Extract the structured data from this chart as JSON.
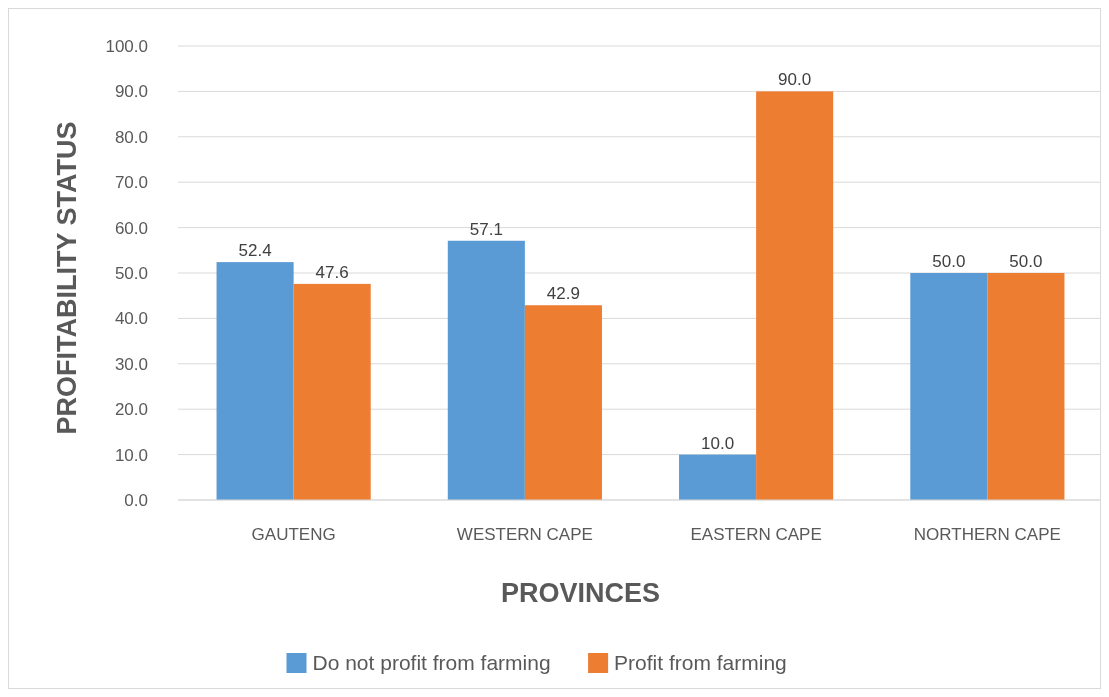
{
  "chart_data": {
    "type": "bar",
    "xlabel": "PROVINCES",
    "ylabel": "PROFITABILITY STATUS",
    "categories": [
      "GAUTENG",
      "WESTERN CAPE",
      "EASTERN CAPE",
      "NORTHERN CAPE"
    ],
    "series": [
      {
        "name": "Do not profit from farming",
        "color": "#5b9bd5",
        "values": [
          52.4,
          57.1,
          10.0,
          50.0
        ],
        "value_labels": [
          "52.4",
          "57.1",
          "10.0",
          "50.0"
        ]
      },
      {
        "name": "Profit from farming",
        "color": "#ed7d31",
        "values": [
          47.6,
          42.9,
          90.0,
          50.0
        ],
        "value_labels": [
          "47.6",
          "42.9",
          "90.0",
          "50.0"
        ]
      }
    ],
    "ylim": [
      0,
      100
    ],
    "yticks": [
      {
        "value": 0,
        "label": "0.0"
      },
      {
        "value": 10,
        "label": "10.0"
      },
      {
        "value": 20,
        "label": "20.0"
      },
      {
        "value": 30,
        "label": "30.0"
      },
      {
        "value": 40,
        "label": "40.0"
      },
      {
        "value": 50,
        "label": "50.0"
      },
      {
        "value": 60,
        "label": "60.0"
      },
      {
        "value": 70,
        "label": "70.0"
      },
      {
        "value": 80,
        "label": "80.0"
      },
      {
        "value": 90,
        "label": "90.0"
      },
      {
        "value": 100,
        "label": "100.0"
      }
    ],
    "grid": "y",
    "legend": "bottom"
  }
}
